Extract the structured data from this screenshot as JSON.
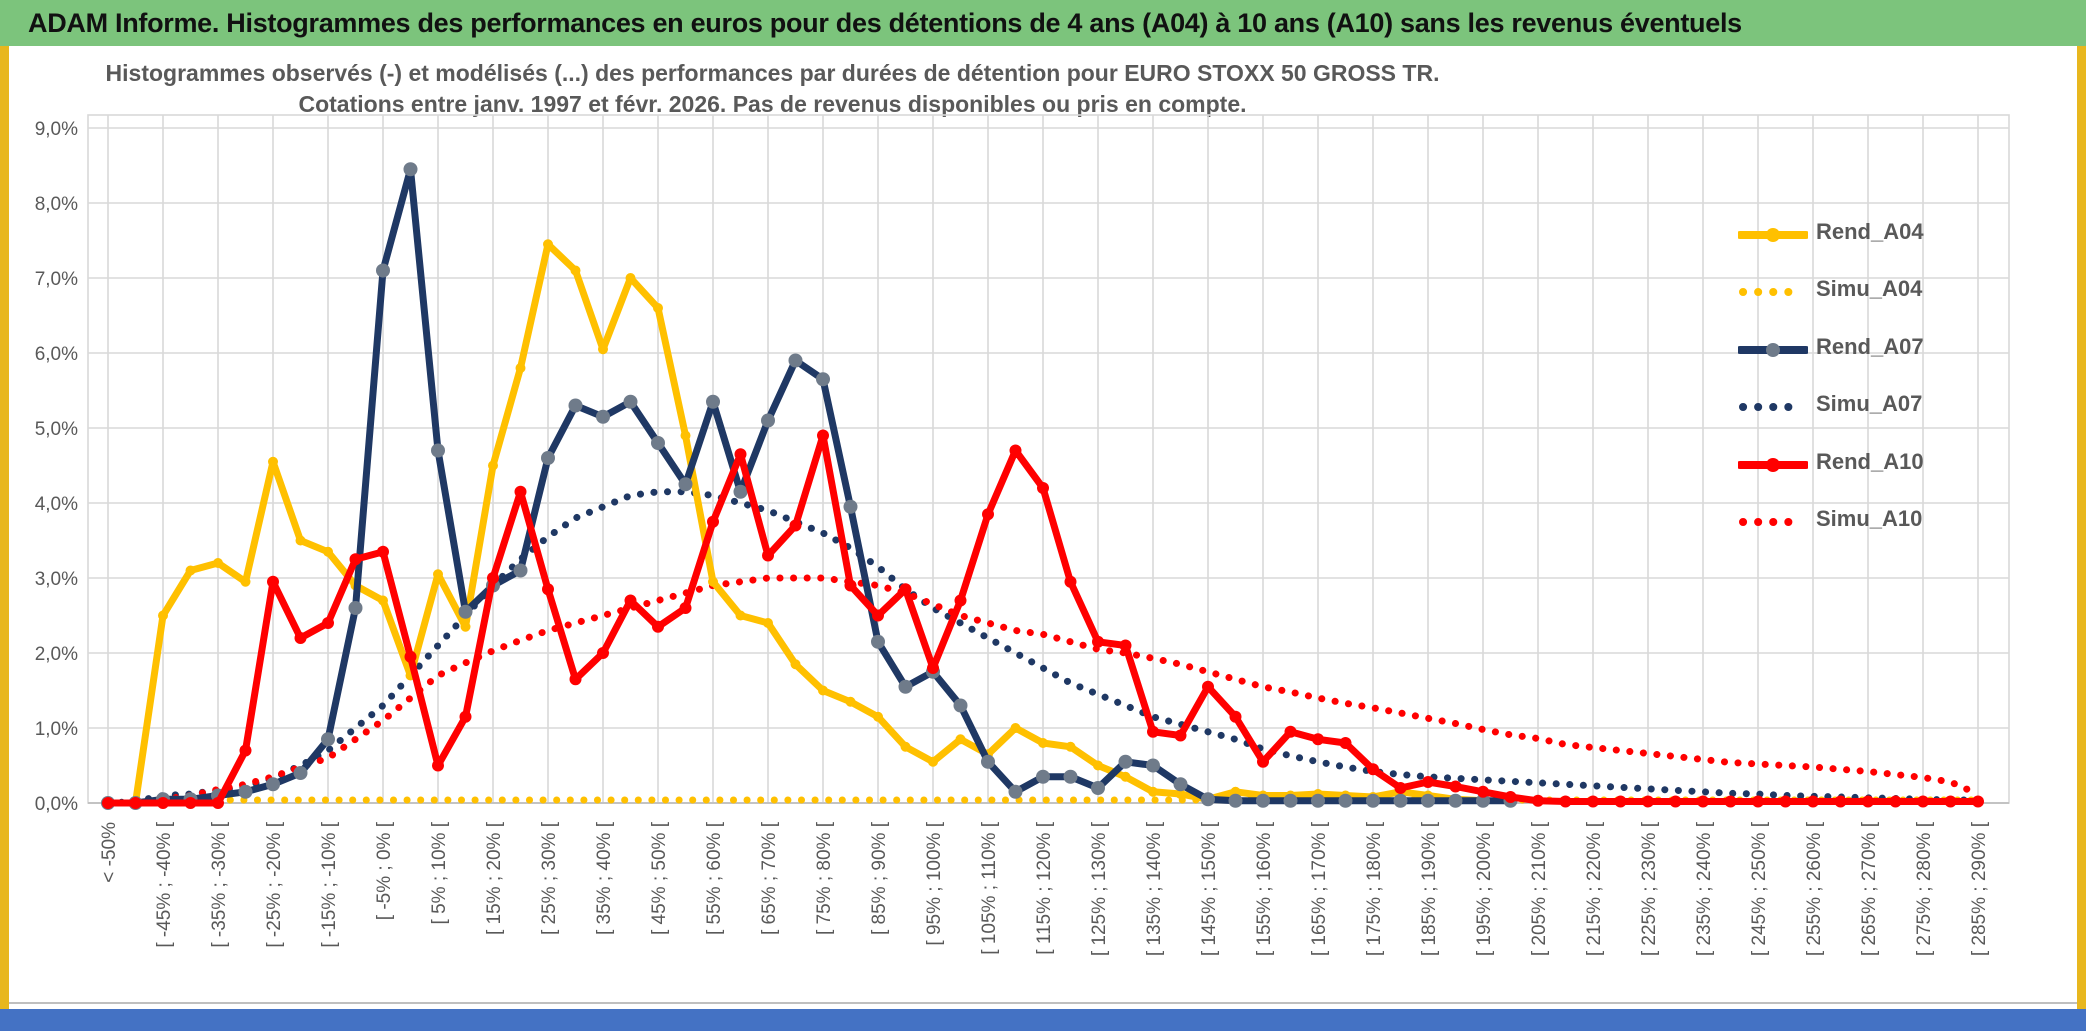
{
  "window": {
    "header_title": "ADAM Informe. Histogrammes des performances en euros pour des détentions de 4 ans (A04) à 10 ans (A10) sans les revenus éventuels"
  },
  "chart_data": {
    "type": "line",
    "title_line1": "Histogrammes observés (-) et modélisés (...) des performances par durées de détention pour EURO STOXX 50 GROSS TR.",
    "title_line2": "Cotations entre janv. 1997 et févr. 2026. Pas de revenus disponibles ou pris en compte.",
    "ylim": [
      0,
      9
    ],
    "grid": true,
    "legend_position": "right",
    "y_tick_labels": [
      "9,0%",
      "8,0%",
      "7,0%",
      "6,0%",
      "5,0%",
      "4,0%",
      "3,0%",
      "2,0%",
      "1,0%",
      "0,0%"
    ],
    "x_labels": [
      "< -50%",
      "[ -45% ; -40% [",
      "[ -35% ; -30% [",
      "[ -25% ; -20% [",
      "[ -15% ; -10% [",
      "[ -5% ; 0% [",
      "[ 5% ; 10% [",
      "[ 15% ; 20% [",
      "[ 25% ; 30% [",
      "[ 35% ; 40% [",
      "[ 45% ; 50% [",
      "[ 55% ; 60% [",
      "[ 65% ; 70% [",
      "[ 75% ; 80% [",
      "[ 85% ; 90% [",
      "[ 95% ; 100% [",
      "[ 105% ; 110% [",
      "[ 115% ; 120% [",
      "[ 125% ; 130% [",
      "[ 135% ; 140% [",
      "[ 145% ; 150% [",
      "[ 155% ; 160% [",
      "[ 165% ; 170% [",
      "[ 175% ; 180% [",
      "[ 185% ; 190% [",
      "[ 195% ; 200% [",
      "[ 205% ; 210% [",
      "[ 215% ; 220% [",
      "[ 225% ; 230% [",
      "[ 235% ; 240% [",
      "[ 245% ; 250% [",
      "[ 255% ; 260% [",
      "[ 265% ; 270% [",
      "[ 275% ; 280% [",
      "[ 285% ; 290% ["
    ],
    "bins_per_label": 2,
    "legend": [
      {
        "label": "Rend_A04",
        "color": "#FFC000",
        "dotted": false,
        "marker": "#FFC000"
      },
      {
        "label": "Simu_A04",
        "color": "#FFC000",
        "dotted": true
      },
      {
        "label": "Rend_A07",
        "color": "#1F3864",
        "dotted": false,
        "marker": "#6F7B8A"
      },
      {
        "label": "Simu_A07",
        "color": "#1F3864",
        "dotted": true
      },
      {
        "label": "Rend_A10",
        "color": "#FF0000",
        "dotted": false,
        "marker": "#FF0000"
      },
      {
        "label": "Simu_A10",
        "color": "#FF0000",
        "dotted": true
      }
    ],
    "series": [
      {
        "name": "Simu_A04",
        "color": "#FFC000",
        "style": "dotted",
        "values": [
          0,
          0,
          0.04,
          0.04,
          0.04,
          0.04,
          0.04,
          0.04,
          0.04,
          0.04,
          0.04,
          0.04,
          0.04,
          0.04,
          0.04,
          0.04,
          0.04,
          0.04,
          0.04,
          0.04,
          0.04,
          0.04,
          0.04,
          0.04,
          0.04,
          0.04,
          0.04,
          0.04,
          0.04,
          0.04,
          0.04,
          0.04,
          0.04,
          0.04,
          0.04,
          0.04,
          0.04,
          0.04,
          0.04,
          0.04,
          0.04,
          0.04,
          0.04,
          0.04,
          0.04,
          0.04,
          0.04,
          0.04,
          0.04,
          0.04,
          0.04,
          0.04,
          0.04,
          0.04,
          0.04,
          0.04,
          0.04,
          0.04,
          0.04,
          0.04,
          0.04,
          0.04,
          0.04,
          0.04,
          0.04,
          0.04,
          0.04,
          0.04,
          0.04
        ]
      },
      {
        "name": "Simu_A07",
        "color": "#1F3864",
        "style": "dotted",
        "values": [
          0,
          0.02,
          0.1,
          0.12,
          0.17,
          0.22,
          0.33,
          0.5,
          0.7,
          1.0,
          1.3,
          1.7,
          2.1,
          2.5,
          2.9,
          3.25,
          3.55,
          3.8,
          3.95,
          4.1,
          4.15,
          4.15,
          4.1,
          4.0,
          3.9,
          3.75,
          3.6,
          3.4,
          3.15,
          2.85,
          2.6,
          2.4,
          2.2,
          2.0,
          1.8,
          1.6,
          1.45,
          1.3,
          1.15,
          1.05,
          0.95,
          0.85,
          0.72,
          0.63,
          0.55,
          0.48,
          0.42,
          0.38,
          0.35,
          0.33,
          0.31,
          0.29,
          0.27,
          0.25,
          0.23,
          0.21,
          0.19,
          0.17,
          0.15,
          0.13,
          0.12,
          0.1,
          0.09,
          0.08,
          0.07,
          0.06,
          0.05,
          0.04,
          0.04
        ]
      },
      {
        "name": "Simu_A10",
        "color": "#FF0000",
        "style": "dotted",
        "values": [
          0,
          0,
          0.05,
          0.1,
          0.18,
          0.25,
          0.35,
          0.48,
          0.6,
          0.85,
          1.1,
          1.4,
          1.7,
          1.87,
          2.03,
          2.17,
          2.3,
          2.4,
          2.5,
          2.6,
          2.7,
          2.8,
          2.9,
          2.95,
          3.0,
          3.0,
          3.0,
          2.95,
          2.9,
          2.8,
          2.65,
          2.5,
          2.4,
          2.3,
          2.25,
          2.15,
          2.05,
          2.0,
          1.93,
          1.85,
          1.75,
          1.65,
          1.55,
          1.48,
          1.4,
          1.33,
          1.27,
          1.2,
          1.13,
          1.06,
          0.98,
          0.91,
          0.86,
          0.78,
          0.74,
          0.7,
          0.66,
          0.62,
          0.58,
          0.54,
          0.52,
          0.5,
          0.48,
          0.45,
          0.42,
          0.38,
          0.34,
          0.28,
          0.12
        ]
      },
      {
        "name": "Rend_A04",
        "color": "#FFC000",
        "style": "solid",
        "marker": "#FFC000",
        "marker_r": 5,
        "values": [
          0,
          0,
          2.5,
          3.1,
          3.2,
          2.95,
          4.55,
          3.5,
          3.35,
          2.9,
          2.7,
          1.7,
          3.05,
          2.35,
          4.5,
          5.8,
          7.45,
          7.1,
          6.05,
          7.0,
          6.6,
          4.9,
          2.95,
          2.5,
          2.4,
          1.85,
          1.5,
          1.35,
          1.15,
          0.75,
          0.55,
          0.85,
          0.65,
          1.0,
          0.8,
          0.75,
          0.5,
          0.35,
          0.15,
          0.12,
          0.05,
          0.15,
          0.1,
          0.1,
          0.12,
          0.1,
          0.08,
          0.15,
          0.1,
          0.05,
          0.03,
          null,
          null,
          null,
          null,
          null,
          null,
          null,
          null,
          null,
          null,
          null,
          null,
          null,
          null,
          null,
          null,
          null,
          null
        ]
      },
      {
        "name": "Rend_A07",
        "color": "#1F3864",
        "style": "solid",
        "marker": "#6F7B8A",
        "marker_r": 7,
        "values": [
          0,
          0,
          0.05,
          0.05,
          0.1,
          0.15,
          0.25,
          0.4,
          0.85,
          2.6,
          7.1,
          8.45,
          4.7,
          2.55,
          2.9,
          3.1,
          4.6,
          5.3,
          5.15,
          5.35,
          4.8,
          4.25,
          5.35,
          4.15,
          5.1,
          5.9,
          5.65,
          3.95,
          2.15,
          1.55,
          1.75,
          1.3,
          0.55,
          0.15,
          0.35,
          0.35,
          0.2,
          0.55,
          0.5,
          0.25,
          0.05,
          0.03,
          0.03,
          0.03,
          0.03,
          0.03,
          0.03,
          0.03,
          0.03,
          0.03,
          0.03,
          0.03,
          null,
          null,
          null,
          null,
          null,
          null,
          null,
          null,
          null,
          null,
          null,
          null,
          null,
          null,
          null,
          null,
          null
        ]
      },
      {
        "name": "Rend_A10",
        "color": "#FF0000",
        "style": "solid",
        "marker": "#FF0000",
        "marker_r": 6,
        "values": [
          0,
          0,
          0,
          0,
          0,
          0.7,
          2.95,
          2.2,
          2.4,
          3.25,
          3.35,
          1.95,
          0.5,
          1.15,
          3.0,
          4.15,
          2.85,
          1.65,
          2.0,
          2.7,
          2.35,
          2.6,
          3.75,
          4.65,
          3.3,
          3.7,
          4.9,
          2.9,
          2.5,
          2.85,
          1.8,
          2.7,
          3.85,
          4.7,
          4.2,
          2.95,
          2.15,
          2.1,
          0.95,
          0.9,
          1.55,
          1.15,
          0.55,
          0.95,
          0.85,
          0.8,
          0.45,
          0.2,
          0.28,
          0.22,
          0.15,
          0.08,
          0.03,
          0.02,
          0.02,
          0.02,
          0.02,
          0.02,
          0.02,
          0.02,
          0.02,
          0.02,
          0.02,
          0.02,
          0.02,
          0.02,
          0.02,
          0.02,
          0.02
        ]
      }
    ]
  },
  "colors": {
    "header_green": "#7CC47C",
    "border_gold": "#E8B71E",
    "footer_blue": "#4472C4",
    "grid": "#D9D9D9",
    "axis": "#BFBFBF",
    "text_gray": "#595959"
  }
}
